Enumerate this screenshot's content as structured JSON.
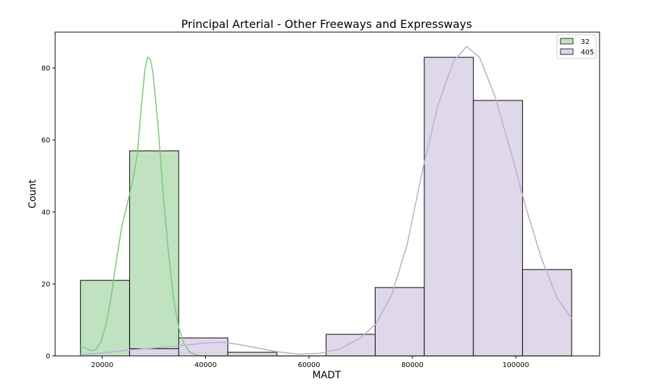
{
  "chart_data": {
    "type": "histogram",
    "title": "Principal Arterial - Other Freeways and Expressways",
    "xlabel": "MADT",
    "ylabel": "Count",
    "xlim": [
      10900,
      116200
    ],
    "ylim": [
      0,
      90
    ],
    "xticks": [
      20000,
      40000,
      60000,
      80000,
      100000
    ],
    "xtick_labels": [
      "20000",
      "40000",
      "60000",
      "80000",
      "100000"
    ],
    "yticks": [
      0,
      20,
      40,
      60,
      80
    ],
    "ytick_labels": [
      "0",
      "20",
      "40",
      "60",
      "80"
    ],
    "bin_edges": [
      15800,
      25300,
      34800,
      44300,
      53800,
      63300,
      72800,
      82300,
      91800,
      101300,
      110800
    ],
    "series": [
      {
        "name": "32",
        "color": "#c0e2c0",
        "line_color": "#7fc97f",
        "counts": [
          21,
          57,
          1,
          0,
          0,
          0,
          0,
          0,
          0,
          0
        ],
        "kde": [
          [
            15800,
            2.5
          ],
          [
            16800,
            2.2
          ],
          [
            17800,
            1.4
          ],
          [
            18800,
            1.8
          ],
          [
            19800,
            4
          ],
          [
            20800,
            9
          ],
          [
            21800,
            17
          ],
          [
            22800,
            27
          ],
          [
            23800,
            36
          ],
          [
            24800,
            42
          ],
          [
            25800,
            48
          ],
          [
            26800,
            56
          ],
          [
            27600,
            70
          ],
          [
            28300,
            80
          ],
          [
            28800,
            83
          ],
          [
            29300,
            82.5
          ],
          [
            29800,
            79
          ],
          [
            30800,
            64
          ],
          [
            31800,
            45
          ],
          [
            32800,
            29
          ],
          [
            33800,
            16
          ],
          [
            34800,
            8
          ],
          [
            35800,
            3.5
          ],
          [
            36800,
            1.2
          ],
          [
            37800,
            0.4
          ],
          [
            38800,
            0.1
          ],
          [
            40000,
            0
          ],
          [
            110800,
            0
          ]
        ]
      },
      {
        "name": "405",
        "color": "#ddd6ea",
        "line_color": "#beaed4",
        "counts": [
          0,
          2,
          5,
          1,
          0,
          6,
          19,
          83,
          71,
          24
        ],
        "kde": [
          [
            15800,
            0.3
          ],
          [
            20000,
            0.8
          ],
          [
            25000,
            1.6
          ],
          [
            30000,
            2.2
          ],
          [
            35000,
            2.8
          ],
          [
            40000,
            3.6
          ],
          [
            43000,
            3.8
          ],
          [
            46000,
            3.3
          ],
          [
            50000,
            2.2
          ],
          [
            54000,
            1.1
          ],
          [
            58000,
            0.5
          ],
          [
            62000,
            0.7
          ],
          [
            66000,
            2
          ],
          [
            70000,
            5
          ],
          [
            73000,
            9
          ],
          [
            76000,
            17
          ],
          [
            79000,
            31
          ],
          [
            82000,
            52
          ],
          [
            85000,
            70
          ],
          [
            88000,
            82
          ],
          [
            90500,
            86
          ],
          [
            93000,
            83
          ],
          [
            96000,
            72
          ],
          [
            99000,
            57
          ],
          [
            102000,
            41
          ],
          [
            105000,
            27
          ],
          [
            108000,
            16
          ],
          [
            110800,
            10.5
          ]
        ]
      }
    ],
    "legend_position": "top-right",
    "grid": false
  }
}
